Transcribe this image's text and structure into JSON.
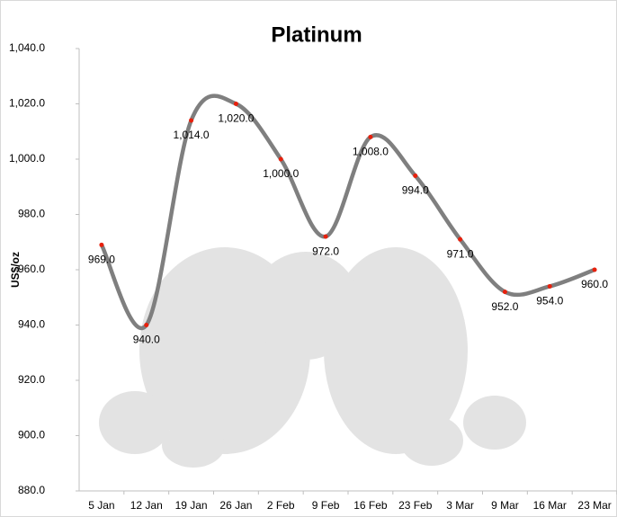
{
  "chart_data": {
    "type": "line",
    "title": "Platinum",
    "y_label": "US$/oz",
    "categories": [
      "5 Jan",
      "12 Jan",
      "19 Jan",
      "26 Jan",
      "2 Feb",
      "9 Feb",
      "16 Feb",
      "23 Feb",
      "3 Mar",
      "9 Mar",
      "16 Mar",
      "23 Mar"
    ],
    "series": [
      {
        "name": "Platinum",
        "color": "#7f7f7f",
        "marker_color": "#e8200c",
        "values": [
          969,
          940,
          1014,
          1020,
          1000,
          972,
          1008,
          994,
          971,
          952,
          954,
          960
        ],
        "value_labels": [
          "969.0",
          "940.0",
          "1,014.0",
          "1,020.0",
          "1,000.0",
          "972.0",
          "1,008.0",
          "994.0",
          "971.0",
          "952.0",
          "954.0",
          "960.0"
        ]
      }
    ],
    "ylim": [
      880,
      1040
    ],
    "yticks": [
      {
        "value": 880,
        "label": "880.0"
      },
      {
        "value": 900,
        "label": "900.0"
      },
      {
        "value": 920,
        "label": "920.0"
      },
      {
        "value": 940,
        "label": "940.0"
      },
      {
        "value": 960,
        "label": "960.0"
      },
      {
        "value": 980,
        "label": "980.0"
      },
      {
        "value": 1000,
        "label": "1,000.0"
      },
      {
        "value": 1020,
        "label": "1,020.0"
      },
      {
        "value": 1040,
        "label": "1,040.0"
      }
    ],
    "grid": false,
    "smooth": true
  }
}
